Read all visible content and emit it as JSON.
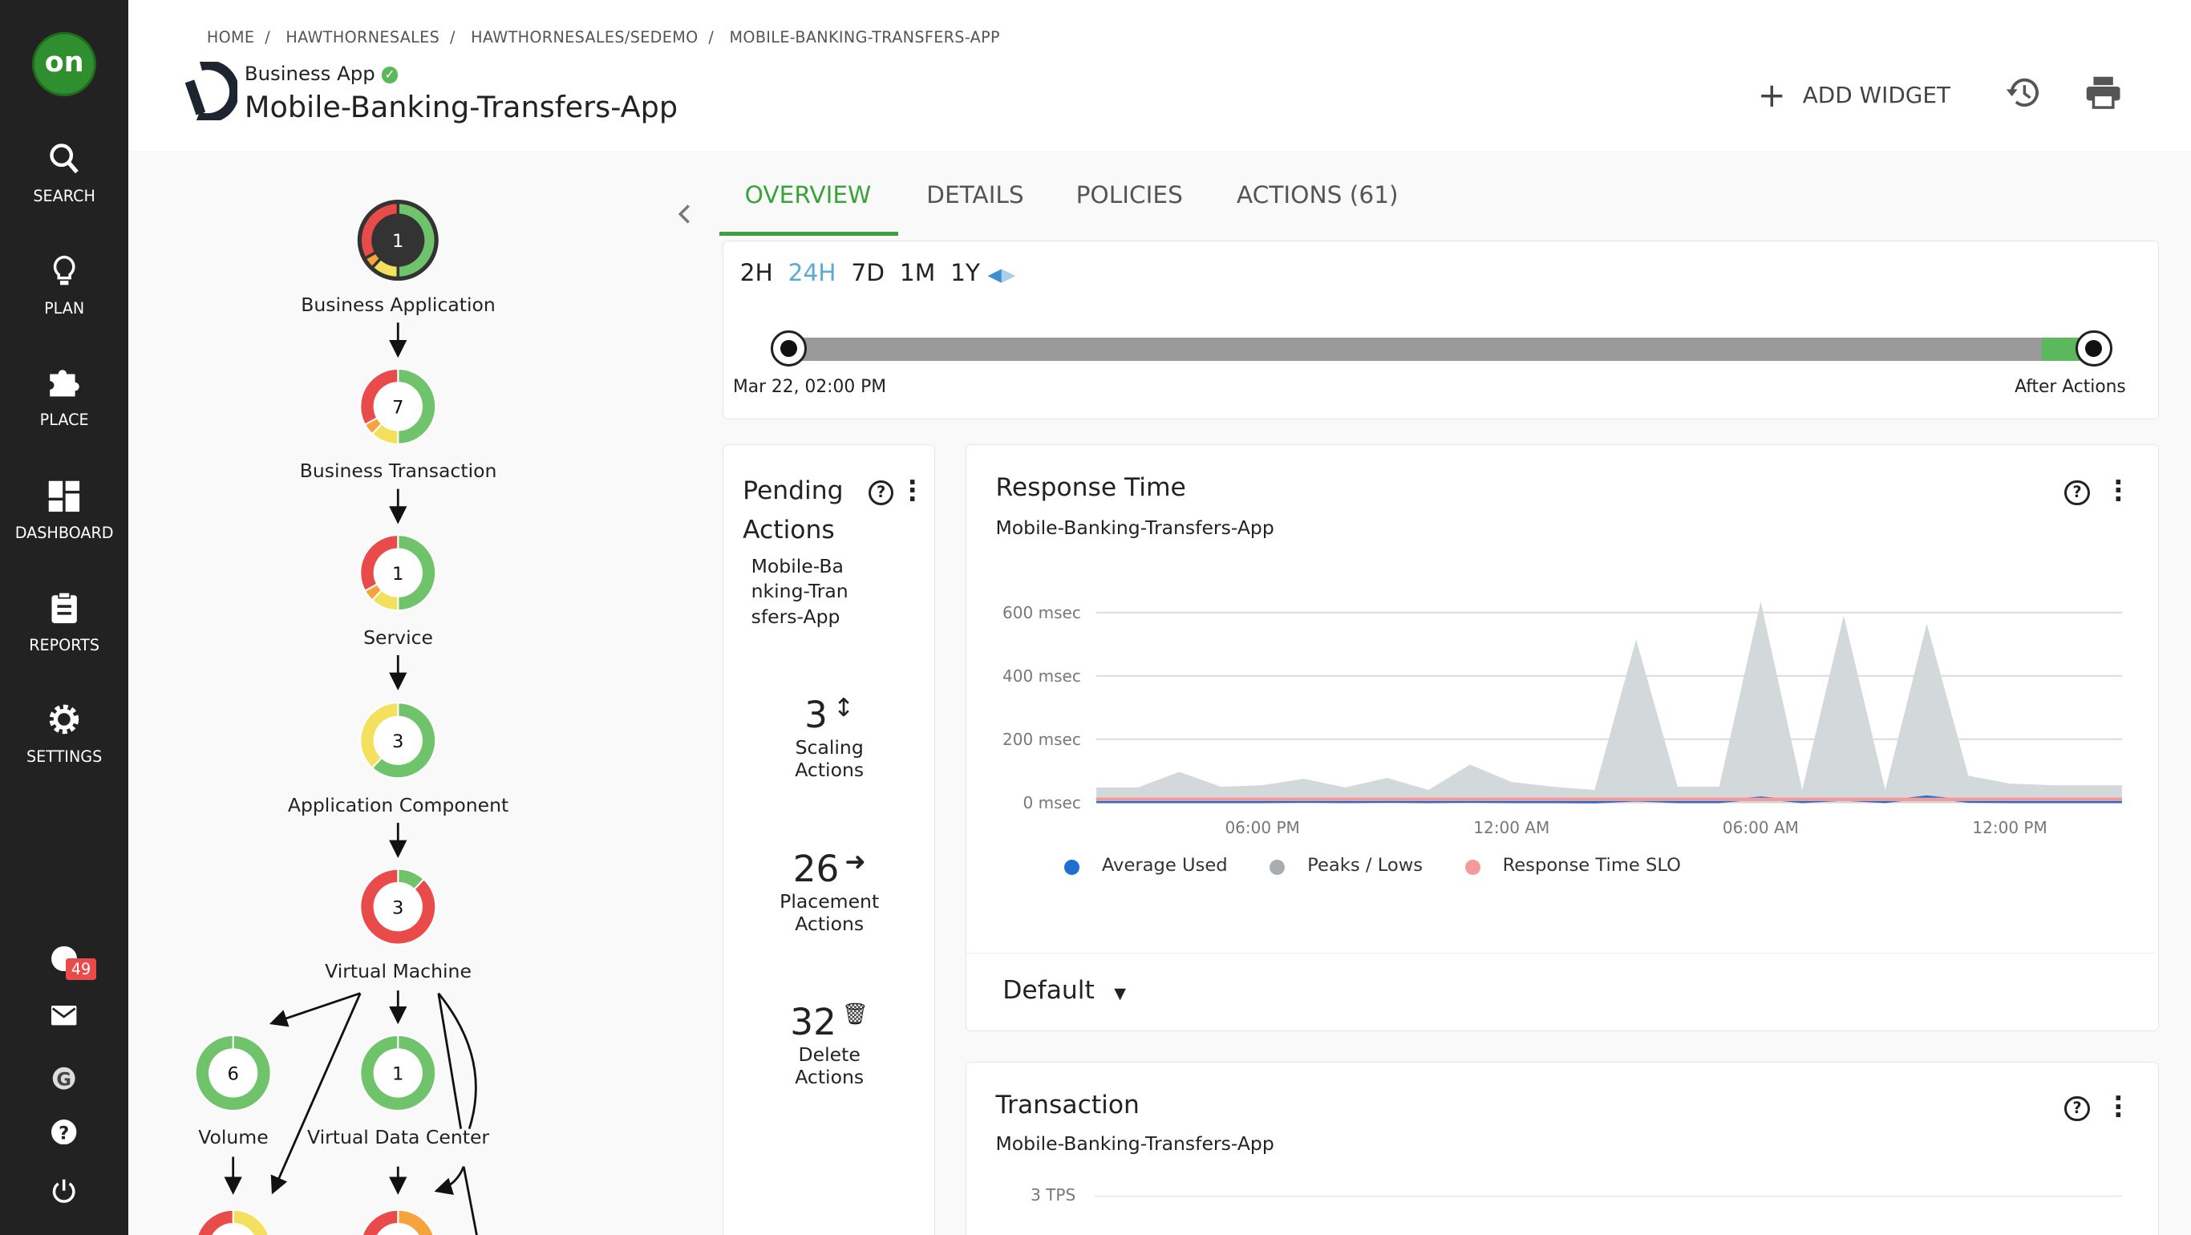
{
  "sidebar": {
    "logo_text": "on",
    "items": [
      {
        "label": "SEARCH",
        "icon": "search-icon"
      },
      {
        "label": "PLAN",
        "icon": "lightbulb-icon"
      },
      {
        "label": "PLACE",
        "icon": "puzzle-icon"
      },
      {
        "label": "DASHBOARD",
        "icon": "dashboard-icon"
      },
      {
        "label": "REPORTS",
        "icon": "clipboard-icon"
      },
      {
        "label": "SETTINGS",
        "icon": "gear-icon"
      }
    ],
    "notifications_badge": "49",
    "bottom_icons": [
      "notification-icon",
      "mail-icon",
      "g-icon",
      "help-icon",
      "power-icon"
    ]
  },
  "header": {
    "breadcrumb": [
      "HOME",
      "HAWTHORNESALES",
      "HAWTHORNESALES/SEDEMO",
      "MOBILE-BANKING-TRANSFERS-APP"
    ],
    "entity_type": "Business App",
    "title": "Mobile-Banking-Transfers-App",
    "add_widget": "ADD WIDGET"
  },
  "tabs": [
    {
      "label": "OVERVIEW",
      "active": true
    },
    {
      "label": "DETAILS"
    },
    {
      "label": "POLICIES"
    },
    {
      "label": "ACTIONS (61)"
    }
  ],
  "accent_color": "#3aa23a",
  "timeline": {
    "ranges": [
      "2H",
      "24H",
      "7D",
      "1M",
      "1Y"
    ],
    "selected": "24H",
    "start_label": "Mar 22, 02:00 PM",
    "end_label": "After Actions"
  },
  "topology": {
    "nodes": [
      {
        "label": "Business Application",
        "count": "1",
        "segments": {
          "green": 0.5,
          "yellow": 0.12,
          "orange": 0.05,
          "red": 0.33
        },
        "selected": true
      },
      {
        "label": "Business Transaction",
        "count": "7",
        "segments": {
          "green": 0.5,
          "yellow": 0.12,
          "orange": 0.05,
          "red": 0.33
        }
      },
      {
        "label": "Service",
        "count": "1",
        "segments": {
          "green": 0.5,
          "yellow": 0.12,
          "orange": 0.05,
          "red": 0.33
        }
      },
      {
        "label": "Application Component",
        "count": "3",
        "segments": {
          "green": 0.62,
          "yellow": 0.38,
          "orange": 0,
          "red": 0
        }
      },
      {
        "label": "Virtual Machine",
        "count": "3",
        "segments": {
          "green": 0.12,
          "yellow": 0,
          "orange": 0,
          "red": 0.88
        }
      },
      {
        "label": "Volume",
        "count": "6",
        "segments": {
          "green": 1,
          "yellow": 0,
          "orange": 0,
          "red": 0
        }
      },
      {
        "label": "Virtual Data Center",
        "count": "1",
        "segments": {
          "green": 1,
          "yellow": 0,
          "orange": 0,
          "red": 0
        }
      },
      {
        "label": "",
        "count": "",
        "segments": {
          "green": 0,
          "yellow": 0.5,
          "orange": 0,
          "red": 0.5
        }
      },
      {
        "label": "",
        "count": "",
        "segments": {
          "green": 0,
          "yellow": 0,
          "orange": 0.5,
          "red": 0.5
        }
      }
    ]
  },
  "pending": {
    "title": "Pending Actions",
    "subtitle": "Mobile-Banking-Transfers-App",
    "stats": [
      {
        "count": "3",
        "label": "Scaling Actions",
        "icon": "scale-arrows-icon"
      },
      {
        "count": "26",
        "label": "Placement Actions",
        "icon": "arrow-right-icon"
      },
      {
        "count": "32",
        "label": "Delete Actions",
        "icon": "trash-icon"
      }
    ]
  },
  "response": {
    "title": "Response Time",
    "subtitle": "Mobile-Banking-Transfers-App",
    "dropdown": "Default"
  },
  "transaction": {
    "title": "Transaction",
    "subtitle": "Mobile-Banking-Transfers-App",
    "first_tick": "3 TPS"
  },
  "chart_data": {
    "type": "area",
    "title": "Response Time",
    "ylim": [
      0,
      600
    ],
    "yticks": [
      "0 msec",
      "200 msec",
      "400 msec",
      "600 msec"
    ],
    "ytick_values": [
      0,
      200,
      400,
      600
    ],
    "xticks": [
      "06:00 PM",
      "12:00 AM",
      "06:00 AM",
      "12:00 PM"
    ],
    "xtick_hours": [
      "18:00",
      "00:00",
      "06:00",
      "12:00"
    ],
    "x": [
      "14:00",
      "15:00",
      "16:00",
      "17:00",
      "18:00",
      "19:00",
      "20:00",
      "21:00",
      "22:00",
      "23:00",
      "00:00",
      "01:00",
      "02:00",
      "03:00",
      "04:00",
      "05:00",
      "06:00",
      "07:00",
      "08:00",
      "09:00",
      "10:00",
      "11:00",
      "12:00",
      "13:00",
      "14:00",
      "15:00"
    ],
    "grid": true,
    "legend_position": "bottom",
    "series": [
      {
        "name": "Peaks / Lows",
        "color": "#d3d8da",
        "values": [
          48,
          48,
          97,
          50,
          55,
          75,
          48,
          78,
          40,
          120,
          65,
          50,
          40,
          515,
          50,
          50,
          635,
          40,
          590,
          40,
          565,
          85,
          60,
          55,
          55,
          55
        ]
      },
      {
        "name": "Average Used",
        "color": "#1f6fd1",
        "values": [
          3,
          3,
          3,
          3,
          3,
          4,
          3,
          4,
          3,
          4,
          3,
          3,
          2,
          8,
          3,
          3,
          15,
          3,
          10,
          3,
          18,
          4,
          3,
          3,
          3,
          3
        ]
      },
      {
        "name": "Response Time SLO",
        "color": "#f59a9a",
        "values": [
          10,
          10,
          10,
          10,
          10,
          10,
          10,
          10,
          10,
          10,
          10,
          10,
          10,
          10,
          10,
          10,
          10,
          10,
          10,
          10,
          10,
          10,
          10,
          10,
          10,
          10
        ]
      }
    ]
  }
}
